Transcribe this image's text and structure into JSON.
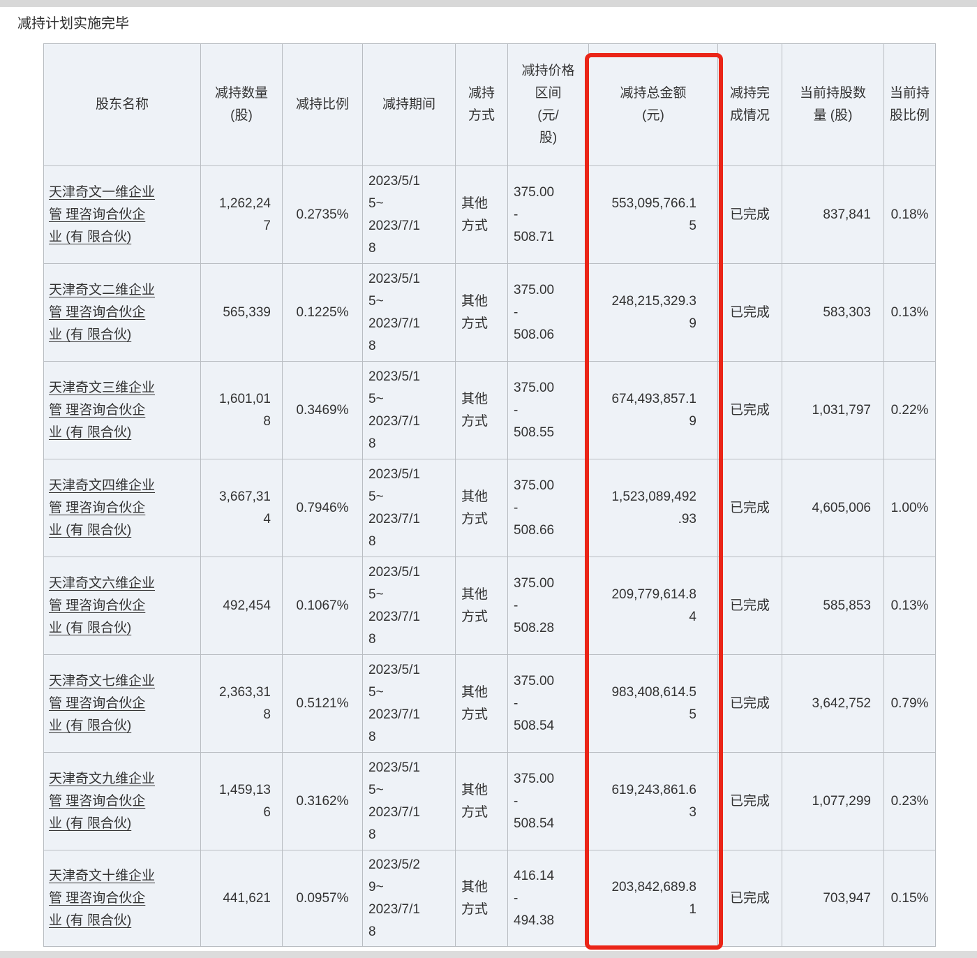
{
  "title": "减持计划实施完毕",
  "highlight": {
    "border_color": "#ea2518",
    "highlighted_column": "total_amount"
  },
  "colors": {
    "cell_background": "#eef2f7",
    "table_border": "#b9bdc2",
    "text": "#333333"
  },
  "table": {
    "columns": [
      {
        "key": "name",
        "label": "股东名称"
      },
      {
        "key": "quantity",
        "label": "减持数量\n(股)"
      },
      {
        "key": "ratio",
        "label": "减持比例"
      },
      {
        "key": "period",
        "label": "减持期间"
      },
      {
        "key": "method",
        "label": "减持\n方式"
      },
      {
        "key": "price_range",
        "label": "减持价格\n区间\n(元/\n股)"
      },
      {
        "key": "total_amount",
        "label": "减持总金额\n(元)"
      },
      {
        "key": "status",
        "label": "减持完\n成情况"
      },
      {
        "key": "current_shares",
        "label": "当前持股数\n量 (股)"
      },
      {
        "key": "current_ratio",
        "label": "当前持\n股比例"
      }
    ],
    "rows": [
      {
        "name": "天津奇文一维企业管 理咨询合伙企业 (有 限合伙)",
        "quantity": "1,262,247",
        "ratio": "0.2735%",
        "period": "2023/5/15~ 2023/7/18",
        "method": "其他方式",
        "price_range": "375.00 - 508.71",
        "total_amount": "553,095,766.15",
        "status": "已完成",
        "current_shares": "837,841",
        "current_ratio": "0.18%"
      },
      {
        "name": "天津奇文二维企业管 理咨询合伙企业 (有 限合伙)",
        "quantity": "565,339",
        "ratio": "0.1225%",
        "period": "2023/5/15~ 2023/7/18",
        "method": "其他方式",
        "price_range": "375.00 - 508.06",
        "total_amount": "248,215,329.39",
        "status": "已完成",
        "current_shares": "583,303",
        "current_ratio": "0.13%"
      },
      {
        "name": "天津奇文三维企业管 理咨询合伙企业 (有 限合伙)",
        "quantity": "1,601,018",
        "ratio": "0.3469%",
        "period": "2023/5/15~ 2023/7/18",
        "method": "其他方式",
        "price_range": "375.00 - 508.55",
        "total_amount": "674,493,857.19",
        "status": "已完成",
        "current_shares": "1,031,797",
        "current_ratio": "0.22%"
      },
      {
        "name": "天津奇文四维企业管 理咨询合伙企业 (有 限合伙)",
        "quantity": "3,667,314",
        "ratio": "0.7946%",
        "period": "2023/5/15~ 2023/7/18",
        "method": "其他方式",
        "price_range": "375.00 - 508.66",
        "total_amount": "1,523,089,492.93",
        "status": "已完成",
        "current_shares": "4,605,006",
        "current_ratio": "1.00%"
      },
      {
        "name": "天津奇文六维企业管 理咨询合伙企业 (有 限合伙)",
        "quantity": "492,454",
        "ratio": "0.1067%",
        "period": "2023/5/15~ 2023/7/18",
        "method": "其他方式",
        "price_range": "375.00 - 508.28",
        "total_amount": "209,779,614.84",
        "status": "已完成",
        "current_shares": "585,853",
        "current_ratio": "0.13%"
      },
      {
        "name": "天津奇文七维企业管 理咨询合伙企业 (有 限合伙)",
        "quantity": "2,363,318",
        "ratio": "0.5121%",
        "period": "2023/5/15~ 2023/7/18",
        "method": "其他方式",
        "price_range": "375.00 - 508.54",
        "total_amount": "983,408,614.55",
        "status": "已完成",
        "current_shares": "3,642,752",
        "current_ratio": "0.79%"
      },
      {
        "name": "天津奇文九维企业管 理咨询合伙企业 (有 限合伙)",
        "quantity": "1,459,136",
        "ratio": "0.3162%",
        "period": "2023/5/15~ 2023/7/18",
        "method": "其他方式",
        "price_range": "375.00 - 508.54",
        "total_amount": "619,243,861.63",
        "status": "已完成",
        "current_shares": "1,077,299",
        "current_ratio": "0.23%"
      },
      {
        "name": "天津奇文十维企业管 理咨询合伙企业 (有 限合伙)",
        "quantity": "441,621",
        "ratio": "0.0957%",
        "period": "2023/5/29~ 2023/7/18",
        "method": "其他方式",
        "price_range": "416.14 - 494.38",
        "total_amount": "203,842,689.81",
        "status": "已完成",
        "current_shares": "703,947",
        "current_ratio": "0.15%"
      }
    ]
  }
}
